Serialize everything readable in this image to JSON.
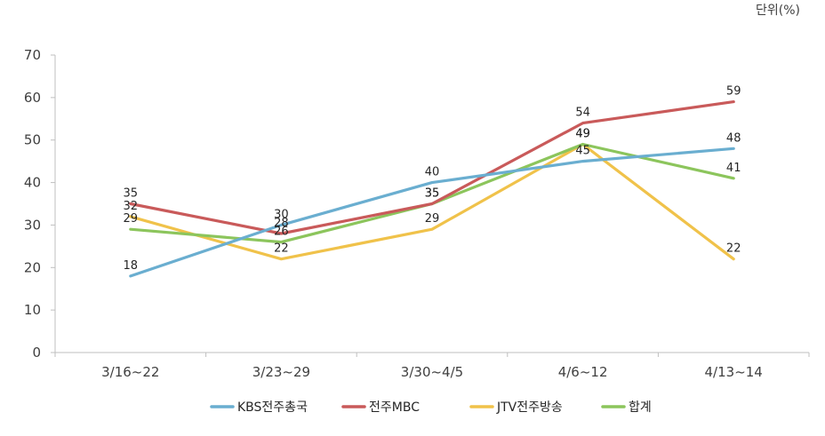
{
  "chart_data": {
    "type": "line",
    "unit_label": "단위(%)",
    "categories": [
      "3/16~22",
      "3/23~29",
      "3/30~4/5",
      "4/6~12",
      "4/13~14"
    ],
    "ylim": [
      0,
      70
    ],
    "yticks": [
      0,
      10,
      20,
      30,
      40,
      50,
      60,
      70
    ],
    "grid": false,
    "legend_position": "bottom",
    "series": [
      {
        "name": "KBS전주총국",
        "color": "#6aaed0",
        "values": [
          18,
          30,
          40,
          45,
          48
        ]
      },
      {
        "name": "전주MBC",
        "color": "#c95a5a",
        "values": [
          35,
          28,
          35,
          54,
          59
        ]
      },
      {
        "name": "JTV전주방송",
        "color": "#f0c24a",
        "values": [
          32,
          22,
          29,
          49,
          22
        ]
      },
      {
        "name": "합계",
        "color": "#8cc55c",
        "values": [
          29,
          26,
          35,
          49,
          41
        ]
      }
    ],
    "data_labels": [
      {
        "series": 0,
        "index": 0,
        "text": "18"
      },
      {
        "series": 0,
        "index": 1,
        "text": "30"
      },
      {
        "series": 0,
        "index": 2,
        "text": "40"
      },
      {
        "series": 0,
        "index": 3,
        "text": "45"
      },
      {
        "series": 0,
        "index": 4,
        "text": "48"
      },
      {
        "series": 1,
        "index": 0,
        "text": "35"
      },
      {
        "series": 1,
        "index": 1,
        "text": "28"
      },
      {
        "series": 1,
        "index": 2,
        "text": "35"
      },
      {
        "series": 1,
        "index": 3,
        "text": "54"
      },
      {
        "series": 1,
        "index": 4,
        "text": "59"
      },
      {
        "series": 2,
        "index": 0,
        "text": "32"
      },
      {
        "series": 2,
        "index": 1,
        "text": "22"
      },
      {
        "series": 2,
        "index": 2,
        "text": "29"
      },
      {
        "series": 2,
        "index": 3,
        "text": "49"
      },
      {
        "series": 2,
        "index": 4,
        "text": "22"
      },
      {
        "series": 3,
        "index": 0,
        "text": "29"
      },
      {
        "series": 3,
        "index": 1,
        "text": "26"
      },
      {
        "series": 3,
        "index": 2,
        "text": "35"
      },
      {
        "series": 3,
        "index": 3,
        "text": "49"
      },
      {
        "series": 3,
        "index": 4,
        "text": "41"
      }
    ]
  }
}
